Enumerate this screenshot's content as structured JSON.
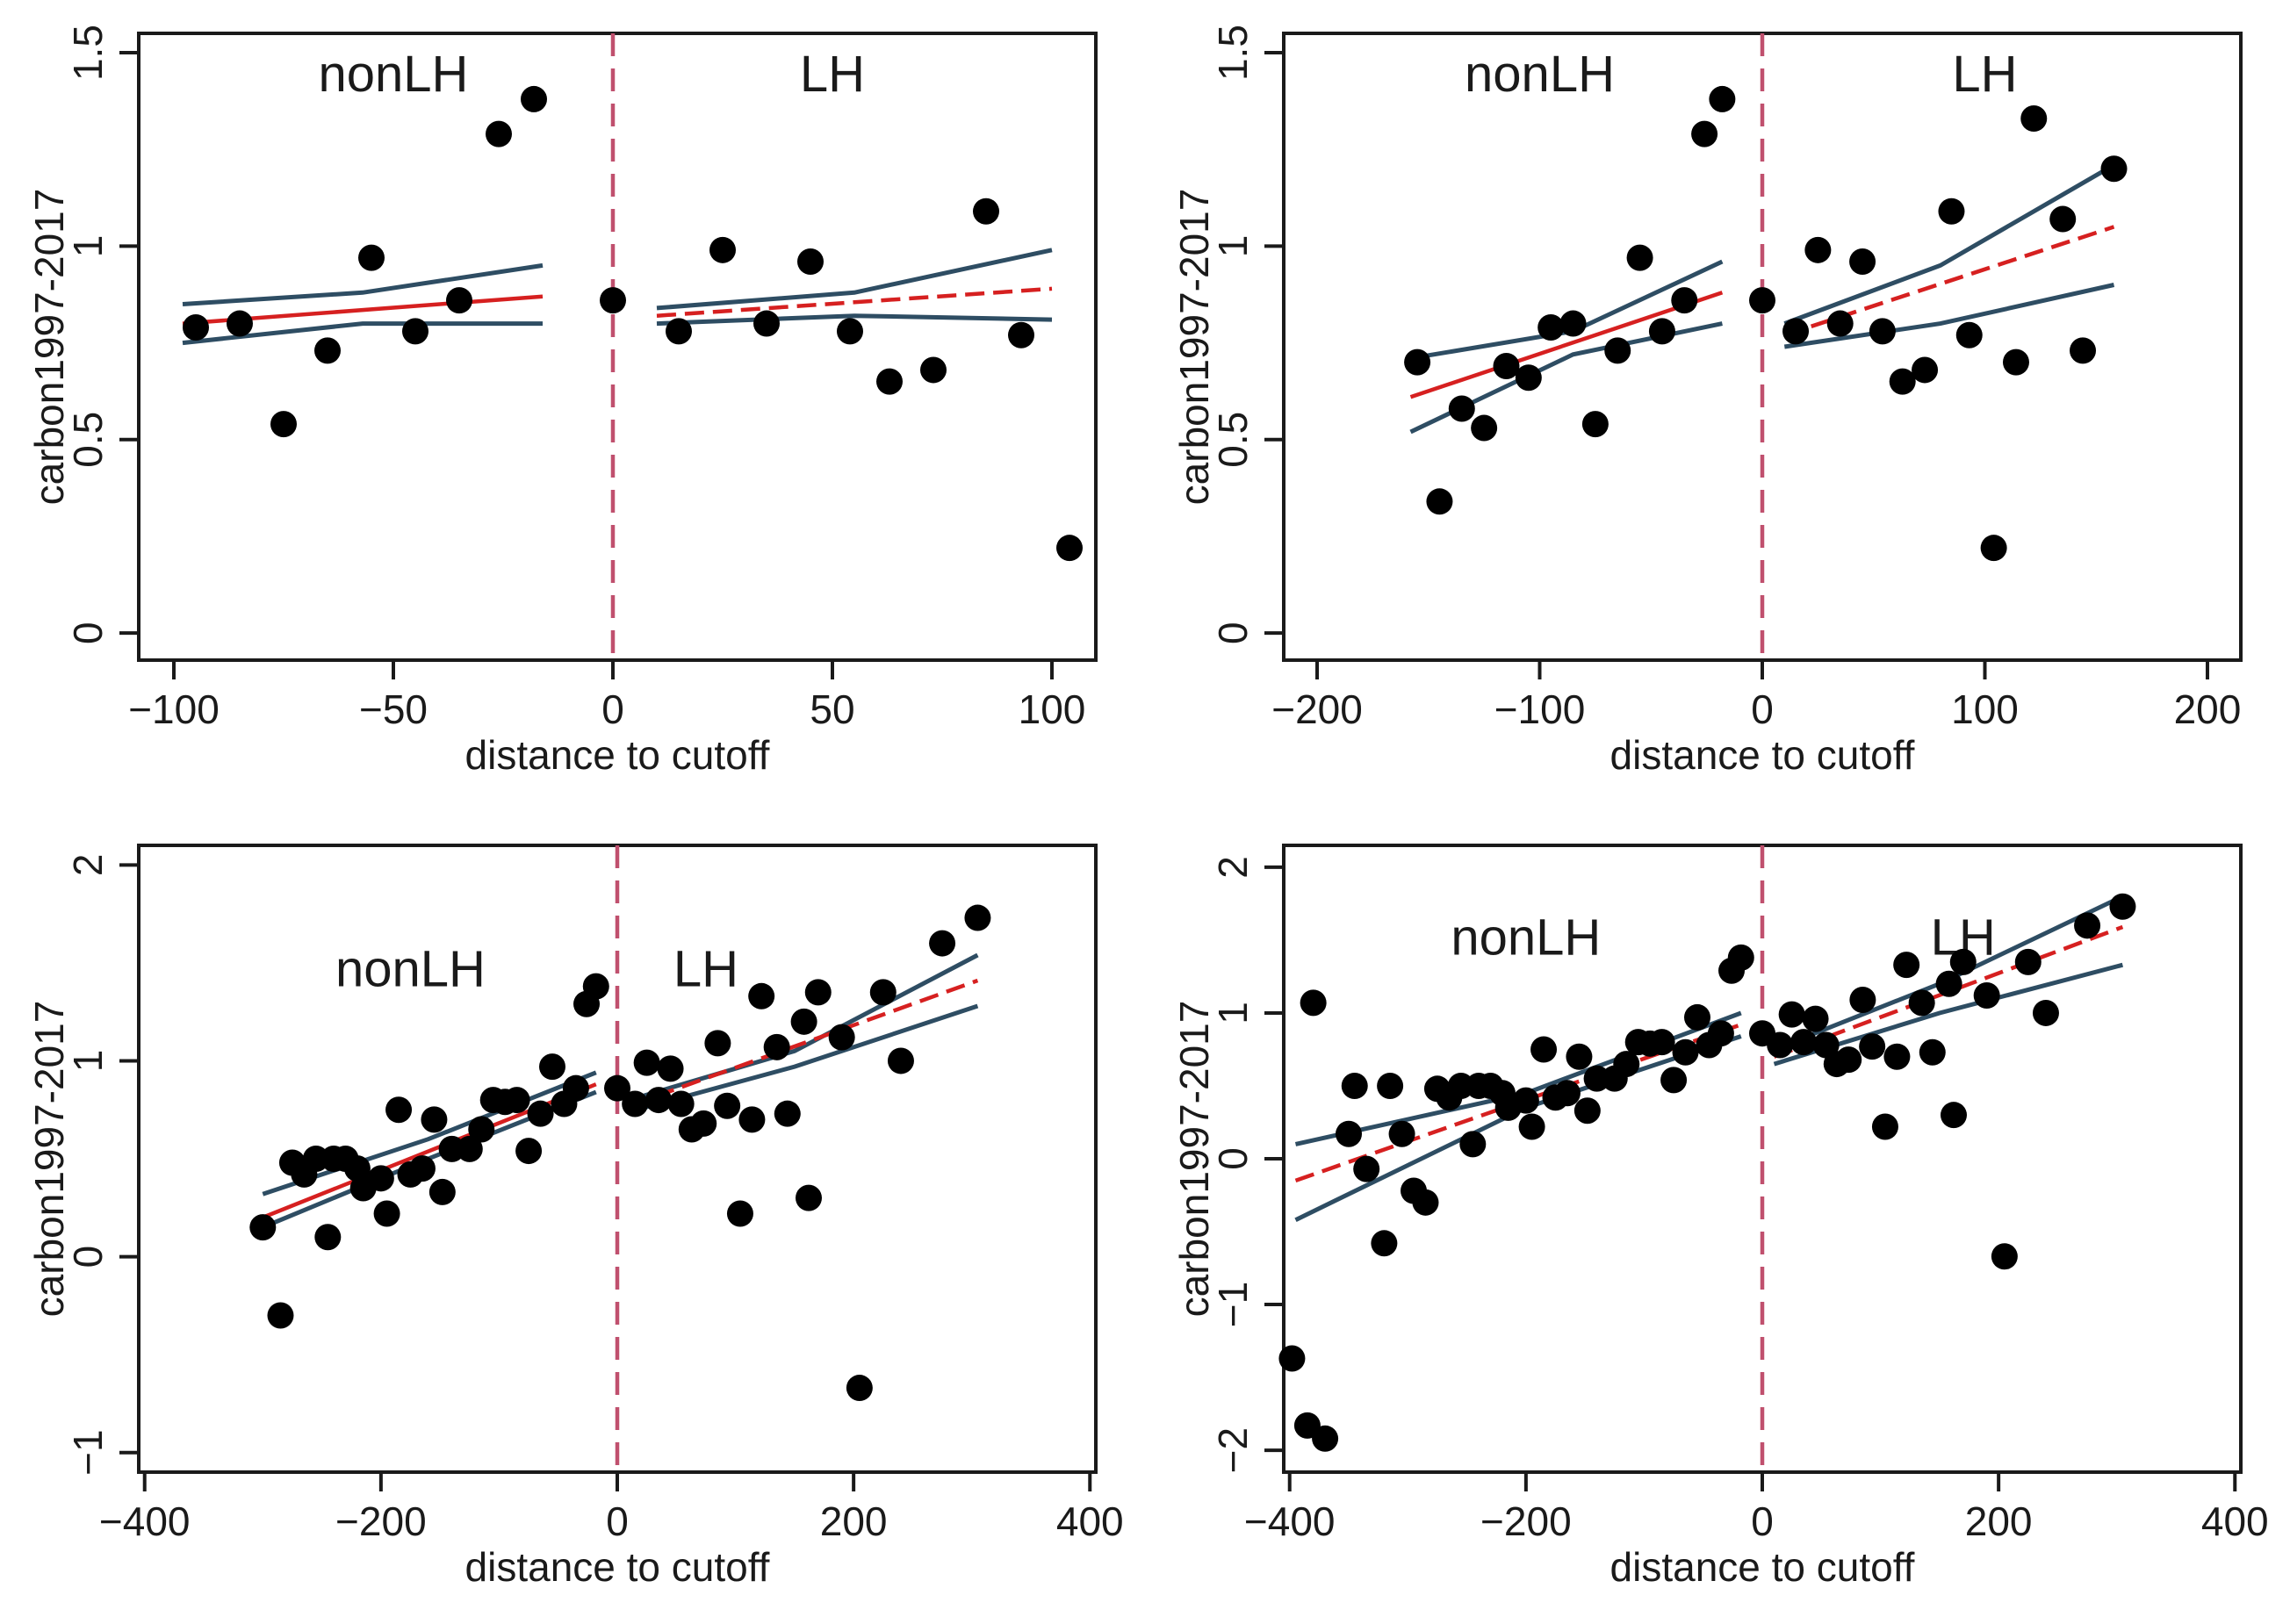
{
  "chart_data": [
    {
      "type": "scatter",
      "panel": "top-left",
      "xlabel": "distance to cutoff",
      "ylabel": "carbon1997-2017",
      "xlim": [
        -108,
        110
      ],
      "ylim": [
        -0.07,
        1.55
      ],
      "xticks": [
        -100,
        -50,
        0,
        50,
        100
      ],
      "xticklabels": [
        "−100",
        "−50",
        "0",
        "50",
        "100"
      ],
      "yticks": [
        0,
        0.5,
        1,
        1.5
      ],
      "yticklabels": [
        "0",
        "0.5",
        "1",
        "1.5"
      ],
      "cutoff": 0,
      "region_labels": [
        {
          "text": "nonLH",
          "x": -50,
          "y": 1.4
        },
        {
          "text": "LH",
          "x": 50,
          "y": 1.4
        }
      ],
      "points": [
        [
          -95,
          0.79
        ],
        [
          -85,
          0.8
        ],
        [
          -75,
          0.54
        ],
        [
          -65,
          0.73
        ],
        [
          -55,
          0.97
        ],
        [
          -45,
          0.78
        ],
        [
          -35,
          0.86
        ],
        [
          -26,
          1.29
        ],
        [
          -18,
          1.38
        ],
        [
          0,
          0.86
        ],
        [
          15,
          0.78
        ],
        [
          25,
          0.99
        ],
        [
          35,
          0.8
        ],
        [
          45,
          0.96
        ],
        [
          54,
          0.78
        ],
        [
          63,
          0.65
        ],
        [
          73,
          0.68
        ],
        [
          85,
          1.09
        ],
        [
          93,
          0.77
        ],
        [
          104,
          0.22
        ]
      ],
      "left_fit": {
        "x": [
          -98,
          -16
        ],
        "y": [
          0.8,
          0.87
        ],
        "dashed": false
      },
      "left_ci_upper": {
        "x": [
          -98,
          -57,
          -16
        ],
        "y": [
          0.85,
          0.88,
          0.95
        ]
      },
      "left_ci_lower": {
        "x": [
          -98,
          -57,
          -16
        ],
        "y": [
          0.75,
          0.8,
          0.8
        ]
      },
      "right_fit": {
        "x": [
          10,
          100
        ],
        "y": [
          0.82,
          0.89
        ],
        "dashed": true
      },
      "right_ci_upper": {
        "x": [
          10,
          55,
          100
        ],
        "y": [
          0.84,
          0.88,
          0.99
        ]
      },
      "right_ci_lower": {
        "x": [
          10,
          55,
          100
        ],
        "y": [
          0.8,
          0.82,
          0.81
        ]
      }
    },
    {
      "type": "scatter",
      "panel": "top-right",
      "xlabel": "distance to cutoff",
      "ylabel": "carbon1997-2017",
      "xlim": [
        -215,
        215
      ],
      "ylim": [
        -0.07,
        1.55
      ],
      "xticks": [
        -200,
        -100,
        0,
        100,
        200
      ],
      "xticklabels": [
        "−200",
        "−100",
        "0",
        "100",
        "200"
      ],
      "yticks": [
        0,
        0.5,
        1,
        1.5
      ],
      "yticklabels": [
        "0",
        "0.5",
        "1",
        "1.5"
      ],
      "cutoff": 0,
      "region_labels": [
        {
          "text": "nonLH",
          "x": -100,
          "y": 1.4
        },
        {
          "text": "LH",
          "x": 100,
          "y": 1.4
        }
      ],
      "points": [
        [
          -155,
          0.7
        ],
        [
          -145,
          0.34
        ],
        [
          -135,
          0.58
        ],
        [
          -125,
          0.53
        ],
        [
          -115,
          0.69
        ],
        [
          -105,
          0.66
        ],
        [
          -95,
          0.79
        ],
        [
          -85,
          0.8
        ],
        [
          -75,
          0.54
        ],
        [
          -65,
          0.73
        ],
        [
          -55,
          0.97
        ],
        [
          -45,
          0.78
        ],
        [
          -35,
          0.86
        ],
        [
          -26,
          1.29
        ],
        [
          -18,
          1.38
        ],
        [
          0,
          0.86
        ],
        [
          15,
          0.78
        ],
        [
          25,
          0.99
        ],
        [
          35,
          0.8
        ],
        [
          45,
          0.96
        ],
        [
          54,
          0.78
        ],
        [
          63,
          0.65
        ],
        [
          73,
          0.68
        ],
        [
          85,
          1.09
        ],
        [
          93,
          0.77
        ],
        [
          104,
          0.22
        ],
        [
          114,
          0.7
        ],
        [
          122,
          1.33
        ],
        [
          135,
          1.07
        ],
        [
          144,
          0.73
        ],
        [
          158,
          1.2
        ]
      ],
      "left_fit": {
        "x": [
          -158,
          -18
        ],
        "y": [
          0.61,
          0.88
        ],
        "dashed": false
      },
      "left_ci_upper": {
        "x": [
          -158,
          -85,
          -18
        ],
        "y": [
          0.71,
          0.78,
          0.96
        ]
      },
      "left_ci_lower": {
        "x": [
          -158,
          -85,
          -18
        ],
        "y": [
          0.52,
          0.72,
          0.8
        ]
      },
      "right_fit": {
        "x": [
          10,
          158
        ],
        "y": [
          0.77,
          1.05
        ],
        "dashed": true
      },
      "right_ci_upper": {
        "x": [
          10,
          80,
          158
        ],
        "y": [
          0.8,
          0.95,
          1.21
        ]
      },
      "right_ci_lower": {
        "x": [
          10,
          80,
          158
        ],
        "y": [
          0.74,
          0.8,
          0.9
        ]
      }
    },
    {
      "type": "scatter",
      "panel": "bottom-left",
      "xlabel": "distance to cutoff",
      "ylabel": "carbon1997-2017",
      "xlim": [
        -405,
        405
      ],
      "ylim": [
        -1.1,
        2.1
      ],
      "xticks": [
        -400,
        -200,
        0,
        200,
        400
      ],
      "xticklabels": [
        "−400",
        "−200",
        "0",
        "200",
        "400"
      ],
      "yticks": [
        -1,
        0,
        1,
        2
      ],
      "yticklabels": [
        "−1",
        "0",
        "1",
        "2"
      ],
      "cutoff": 0,
      "region_labels": [
        {
          "text": "nonLH",
          "x": -175,
          "y": 1.38
        },
        {
          "text": "LH",
          "x": 75,
          "y": 1.38
        }
      ],
      "points": [
        [
          -300,
          0.15
        ],
        [
          -285,
          -0.3
        ],
        [
          -275,
          0.48
        ],
        [
          -265,
          0.42
        ],
        [
          -255,
          0.5
        ],
        [
          -245,
          0.1
        ],
        [
          -240,
          0.5
        ],
        [
          -230,
          0.5
        ],
        [
          -220,
          0.45
        ],
        [
          -215,
          0.35
        ],
        [
          -200,
          0.4
        ],
        [
          -195,
          0.22
        ],
        [
          -185,
          0.75
        ],
        [
          -175,
          0.42
        ],
        [
          -165,
          0.45
        ],
        [
          -155,
          0.7
        ],
        [
          -148,
          0.33
        ],
        [
          -140,
          0.55
        ],
        [
          -125,
          0.55
        ],
        [
          -115,
          0.65
        ],
        [
          -105,
          0.8
        ],
        [
          -95,
          0.79
        ],
        [
          -85,
          0.8
        ],
        [
          -75,
          0.54
        ],
        [
          -65,
          0.73
        ],
        [
          -55,
          0.97
        ],
        [
          -45,
          0.78
        ],
        [
          -35,
          0.86
        ],
        [
          -26,
          1.29
        ],
        [
          -18,
          1.38
        ],
        [
          0,
          0.86
        ],
        [
          15,
          0.78
        ],
        [
          25,
          0.99
        ],
        [
          35,
          0.8
        ],
        [
          45,
          0.96
        ],
        [
          54,
          0.78
        ],
        [
          63,
          0.65
        ],
        [
          73,
          0.68
        ],
        [
          85,
          1.09
        ],
        [
          93,
          0.77
        ],
        [
          104,
          0.22
        ],
        [
          114,
          0.7
        ],
        [
          122,
          1.33
        ],
        [
          135,
          1.07
        ],
        [
          144,
          0.73
        ],
        [
          158,
          1.2
        ],
        [
          162,
          0.3
        ],
        [
          170,
          1.35
        ],
        [
          190,
          1.12
        ],
        [
          205,
          -0.67
        ],
        [
          225,
          1.35
        ],
        [
          240,
          1.0
        ],
        [
          275,
          1.6
        ],
        [
          305,
          1.73
        ]
      ],
      "left_fit": {
        "x": [
          -300,
          -18
        ],
        "y": [
          0.2,
          0.88
        ],
        "dashed": false
      },
      "left_ci_upper": {
        "x": [
          -300,
          -160,
          -18
        ],
        "y": [
          0.32,
          0.6,
          0.94
        ]
      },
      "left_ci_lower": {
        "x": [
          -300,
          -160,
          -18
        ],
        "y": [
          0.15,
          0.5,
          0.84
        ]
      },
      "right_fit": {
        "x": [
          10,
          305
        ],
        "y": [
          0.77,
          1.41
        ],
        "dashed": true
      },
      "right_ci_upper": {
        "x": [
          10,
          150,
          305
        ],
        "y": [
          0.8,
          1.05,
          1.54
        ]
      },
      "right_ci_lower": {
        "x": [
          10,
          150,
          305
        ],
        "y": [
          0.74,
          0.97,
          1.28
        ]
      }
    },
    {
      "type": "scatter",
      "panel": "bottom-right",
      "xlabel": "distance to cutoff",
      "ylabel": "carbon1997-2017",
      "xlim": [
        -405,
        405
      ],
      "ylim": [
        -2.15,
        2.15
      ],
      "xticks": [
        -400,
        -200,
        0,
        200,
        400
      ],
      "xticklabels": [
        "−400",
        "−200",
        "0",
        "200",
        "400"
      ],
      "yticks": [
        -2,
        -1,
        0,
        1,
        2
      ],
      "yticklabels": [
        "−2",
        "−1",
        "0",
        "1",
        "2"
      ],
      "cutoff": 0,
      "region_labels": [
        {
          "text": "nonLH",
          "x": -200,
          "y": 1.4
        },
        {
          "text": "LH",
          "x": 170,
          "y": 1.4
        }
      ],
      "points": [
        [
          -398,
          -1.37
        ],
        [
          -385,
          -1.83
        ],
        [
          -380,
          1.07
        ],
        [
          -370,
          -1.92
        ],
        [
          -350,
          0.17
        ],
        [
          -345,
          0.5
        ],
        [
          -335,
          -0.07
        ],
        [
          -320,
          -0.58
        ],
        [
          -315,
          0.5
        ],
        [
          -305,
          0.17
        ],
        [
          -295,
          -0.22
        ],
        [
          -285,
          -0.3
        ],
        [
          -275,
          0.48
        ],
        [
          -265,
          0.42
        ],
        [
          -255,
          0.5
        ],
        [
          -245,
          0.1
        ],
        [
          -240,
          0.5
        ],
        [
          -230,
          0.5
        ],
        [
          -220,
          0.45
        ],
        [
          -215,
          0.35
        ],
        [
          -200,
          0.4
        ],
        [
          -195,
          0.22
        ],
        [
          -185,
          0.75
        ],
        [
          -175,
          0.42
        ],
        [
          -165,
          0.45
        ],
        [
          -155,
          0.7
        ],
        [
          -148,
          0.33
        ],
        [
          -140,
          0.55
        ],
        [
          -125,
          0.55
        ],
        [
          -115,
          0.65
        ],
        [
          -105,
          0.8
        ],
        [
          -95,
          0.79
        ],
        [
          -85,
          0.8
        ],
        [
          -75,
          0.54
        ],
        [
          -65,
          0.73
        ],
        [
          -55,
          0.97
        ],
        [
          -45,
          0.78
        ],
        [
          -35,
          0.86
        ],
        [
          -26,
          1.29
        ],
        [
          -18,
          1.38
        ],
        [
          0,
          0.86
        ],
        [
          15,
          0.78
        ],
        [
          25,
          0.99
        ],
        [
          35,
          0.8
        ],
        [
          45,
          0.96
        ],
        [
          54,
          0.78
        ],
        [
          63,
          0.65
        ],
        [
          73,
          0.68
        ],
        [
          85,
          1.09
        ],
        [
          93,
          0.77
        ],
        [
          104,
          0.22
        ],
        [
          114,
          0.7
        ],
        [
          122,
          1.33
        ],
        [
          135,
          1.07
        ],
        [
          144,
          0.73
        ],
        [
          158,
          1.2
        ],
        [
          162,
          0.3
        ],
        [
          170,
          1.35
        ],
        [
          190,
          1.12
        ],
        [
          205,
          -0.67
        ],
        [
          225,
          1.35
        ],
        [
          240,
          1.0
        ],
        [
          275,
          1.6
        ],
        [
          305,
          1.73
        ]
      ],
      "left_fit": {
        "x": [
          -395,
          -18
        ],
        "y": [
          -0.15,
          0.92
        ],
        "dashed": true
      },
      "left_ci_upper": {
        "x": [
          -395,
          -200,
          -18
        ],
        "y": [
          0.1,
          0.45,
          1.0
        ]
      },
      "left_ci_lower": {
        "x": [
          -395,
          -200,
          -18
        ],
        "y": [
          -0.42,
          0.35,
          0.84
        ]
      },
      "right_fit": {
        "x": [
          10,
          305
        ],
        "y": [
          0.7,
          1.59
        ],
        "dashed": true
      },
      "right_ci_upper": {
        "x": [
          10,
          150,
          305
        ],
        "y": [
          0.75,
          1.2,
          1.8
        ]
      },
      "right_ci_lower": {
        "x": [
          10,
          150,
          305
        ],
        "y": [
          0.65,
          1.0,
          1.33
        ]
      }
    }
  ]
}
